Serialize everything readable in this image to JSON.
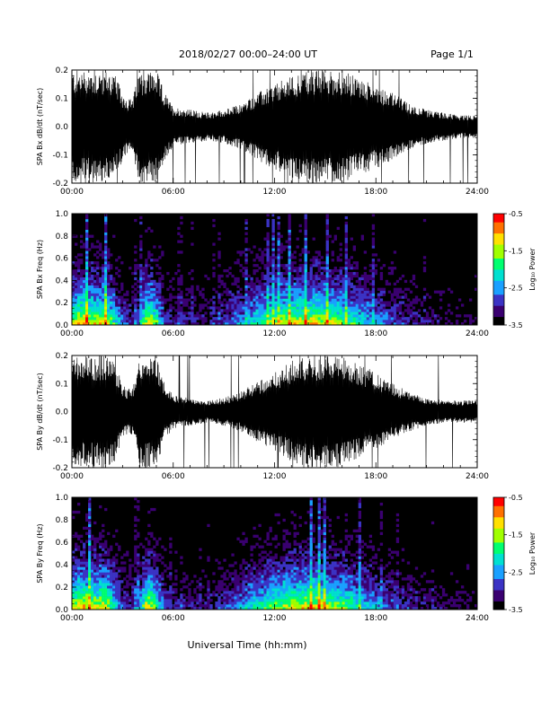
{
  "header": {
    "title": "2018/02/27  00:00–24:00 UT",
    "page": "Page 1/1"
  },
  "xlabel": "Universal Time (hh:mm)",
  "colors": {
    "trace": "#000000",
    "spectrogram_background": "#000000",
    "colormap": [
      "#000000",
      "#3a0070",
      "#3b33c4",
      "#1aa0ff",
      "#00e0d0",
      "#00ff70",
      "#a0ff00",
      "#ffe000",
      "#ff7000",
      "#ff0000"
    ]
  },
  "chart_data": [
    {
      "type": "line",
      "ylabel": "SPA Bx dB/dt (nT/sec)",
      "xlim": [
        0,
        24
      ],
      "ylim": [
        -0.2,
        0.2
      ],
      "x_ticks": [
        "00:00",
        "06:00",
        "12:00",
        "18:00",
        "24:00"
      ],
      "y_ticks": [
        "-0.2",
        "-0.1",
        "0.0",
        "0.1",
        "0.2"
      ],
      "envelope": {
        "hours": [
          0,
          0.5,
          1,
          1.5,
          2,
          2.5,
          3,
          3.3,
          3.6,
          4,
          4.5,
          5,
          5.5,
          6,
          7,
          8,
          9,
          10,
          11,
          12,
          13,
          14,
          15,
          16,
          17,
          18,
          19,
          20,
          21,
          22,
          23,
          24
        ],
        "amplitude": [
          0.2,
          0.2,
          0.2,
          0.2,
          0.2,
          0.19,
          0.12,
          0.1,
          0.1,
          0.2,
          0.2,
          0.2,
          0.12,
          0.07,
          0.06,
          0.05,
          0.06,
          0.08,
          0.12,
          0.15,
          0.18,
          0.2,
          0.2,
          0.2,
          0.17,
          0.15,
          0.12,
          0.08,
          0.06,
          0.05,
          0.04,
          0.04
        ]
      }
    },
    {
      "type": "heatmap",
      "ylabel": "SPA Bx Freq (Hz)",
      "xlim": [
        0,
        24
      ],
      "ylim": [
        0,
        1.0
      ],
      "x_ticks": [
        "00:00",
        "06:00",
        "12:00",
        "18:00",
        "24:00"
      ],
      "y_ticks": [
        "0.0",
        "0.2",
        "0.4",
        "0.6",
        "0.8",
        "1.0"
      ],
      "colorbar": {
        "label": "Log₁₀ Power",
        "range": [
          -3.5,
          -0.5
        ],
        "ticks": [
          "-0.5",
          "-1.5",
          "-2.5",
          "-3.5"
        ]
      },
      "activity": {
        "hours": [
          0,
          0.5,
          1,
          1.5,
          2,
          2.5,
          3,
          3.5,
          4,
          4.5,
          5,
          5.5,
          6,
          7,
          8,
          9,
          10,
          11,
          12,
          13,
          14,
          15,
          16,
          17,
          18,
          19,
          20,
          21,
          22,
          23,
          24
        ],
        "level": [
          0.8,
          0.95,
          0.9,
          0.85,
          0.9,
          0.6,
          0.35,
          0.25,
          0.4,
          0.95,
          0.7,
          0.3,
          0.25,
          0.25,
          0.2,
          0.3,
          0.45,
          0.6,
          0.75,
          0.85,
          0.9,
          0.85,
          0.75,
          0.6,
          0.45,
          0.35,
          0.25,
          0.2,
          0.15,
          0.12,
          0.1
        ]
      }
    },
    {
      "type": "line",
      "ylabel": "SPA By dB/dt (nT/sec)",
      "xlim": [
        0,
        24
      ],
      "ylim": [
        -0.2,
        0.2
      ],
      "x_ticks": [
        "00:00",
        "06:00",
        "12:00",
        "18:00",
        "24:00"
      ],
      "y_ticks": [
        "-0.2",
        "-0.1",
        "0.0",
        "0.1",
        "0.2"
      ],
      "envelope": {
        "hours": [
          0,
          0.5,
          1,
          1.5,
          2,
          2.5,
          3,
          3.3,
          3.6,
          4,
          4.5,
          5,
          5.5,
          6,
          7,
          8,
          9,
          10,
          11,
          12,
          13,
          14,
          15,
          16,
          17,
          18,
          19,
          20,
          21,
          22,
          23,
          24
        ],
        "amplitude": [
          0.2,
          0.2,
          0.2,
          0.2,
          0.2,
          0.18,
          0.1,
          0.08,
          0.09,
          0.2,
          0.2,
          0.2,
          0.1,
          0.06,
          0.05,
          0.04,
          0.05,
          0.07,
          0.11,
          0.14,
          0.18,
          0.2,
          0.2,
          0.2,
          0.17,
          0.14,
          0.1,
          0.07,
          0.05,
          0.04,
          0.04,
          0.04
        ]
      }
    },
    {
      "type": "heatmap",
      "ylabel": "SPA By Freq (Hz)",
      "xlim": [
        0,
        24
      ],
      "ylim": [
        0,
        1.0
      ],
      "x_ticks": [
        "00:00",
        "06:00",
        "12:00",
        "18:00",
        "24:00"
      ],
      "y_ticks": [
        "0.0",
        "0.2",
        "0.4",
        "0.6",
        "0.8",
        "1.0"
      ],
      "colorbar": {
        "label": "Log₁₀ Power",
        "range": [
          -3.5,
          -0.5
        ],
        "ticks": [
          "-0.5",
          "-1.5",
          "-2.5",
          "-3.5"
        ]
      },
      "activity": {
        "hours": [
          0,
          0.5,
          1,
          1.5,
          2,
          2.5,
          3,
          3.5,
          4,
          4.5,
          5,
          5.5,
          6,
          7,
          8,
          9,
          10,
          11,
          12,
          13,
          14,
          15,
          16,
          17,
          18,
          19,
          20,
          21,
          22,
          23,
          24
        ],
        "level": [
          0.85,
          0.95,
          0.9,
          0.85,
          0.9,
          0.6,
          0.35,
          0.25,
          0.4,
          0.95,
          0.7,
          0.3,
          0.25,
          0.2,
          0.2,
          0.3,
          0.45,
          0.6,
          0.75,
          0.85,
          0.9,
          0.85,
          0.75,
          0.6,
          0.45,
          0.35,
          0.25,
          0.2,
          0.15,
          0.12,
          0.1
        ]
      }
    }
  ]
}
